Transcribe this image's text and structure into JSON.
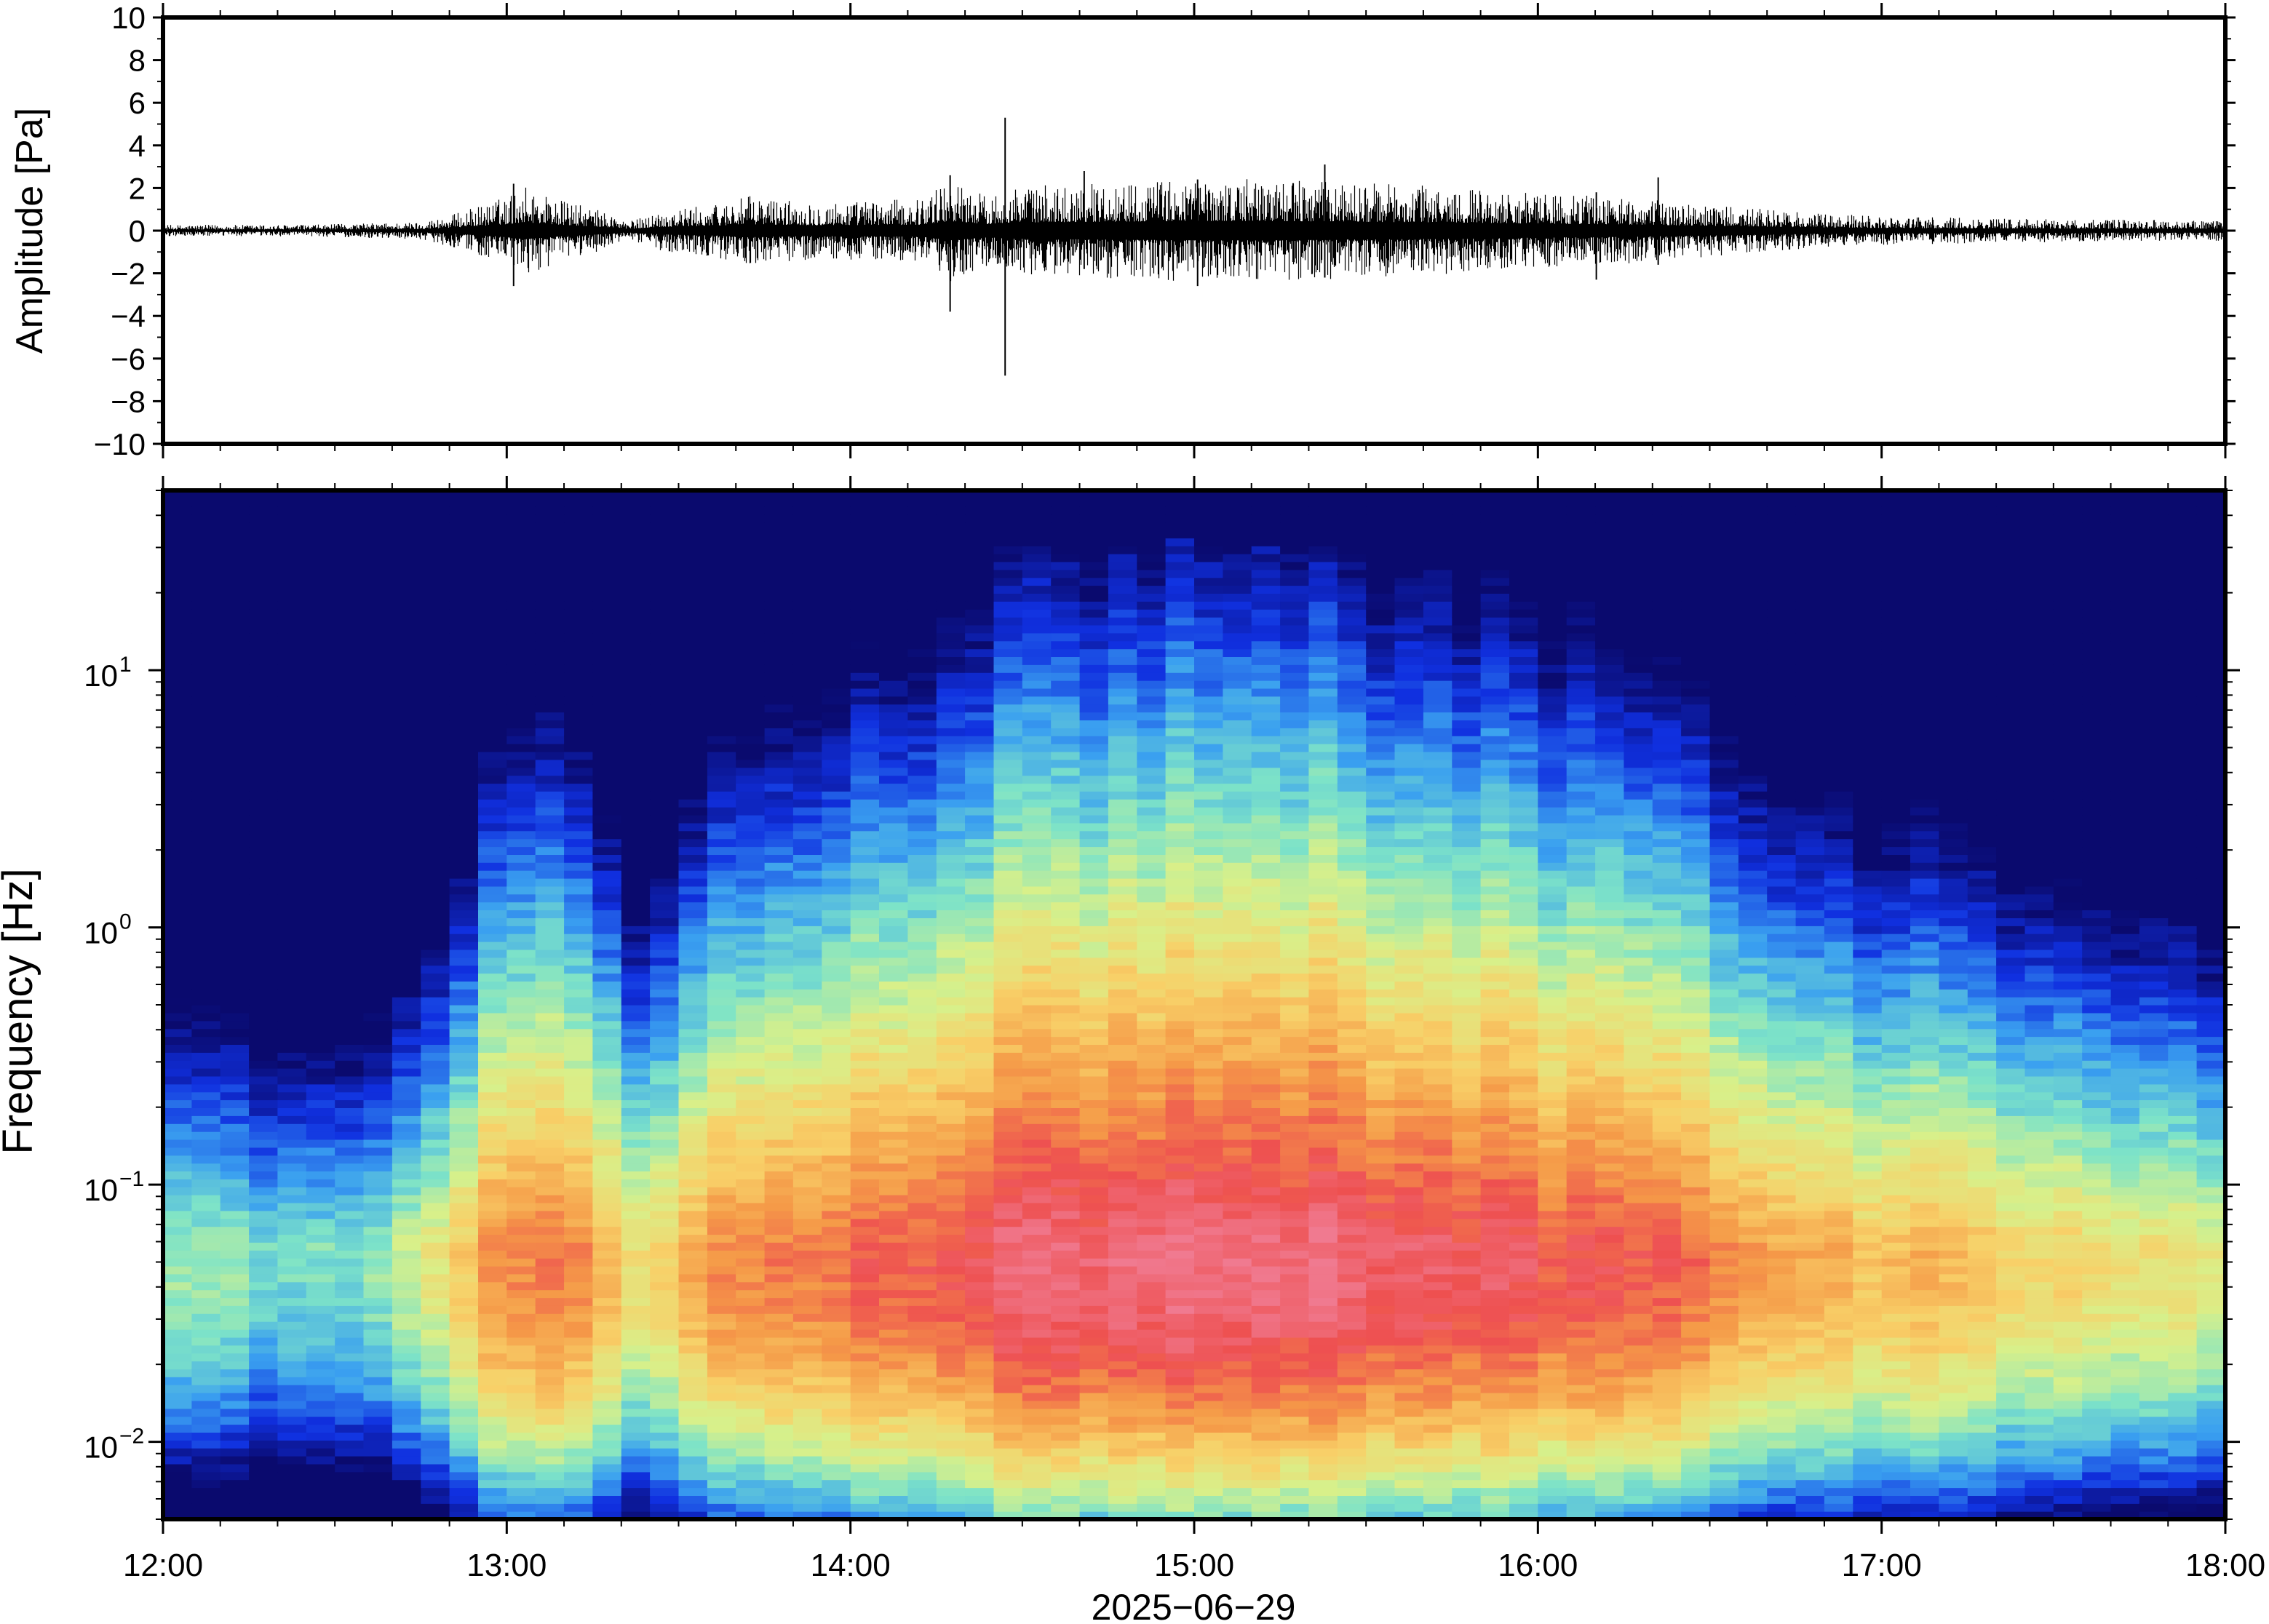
{
  "chart_data": [
    {
      "type": "line",
      "panel": "waveform",
      "ylabel": "Amplitude [Pa]",
      "ylim": [
        -10,
        10
      ],
      "yticks": [
        10,
        8,
        6,
        4,
        2,
        0,
        -2,
        -4,
        -6,
        -8,
        -10
      ],
      "ytick_labels": [
        "10",
        "8",
        "6",
        "4",
        "2",
        "0",
        "−2",
        "−4",
        "−6",
        "−8",
        "−10"
      ],
      "xlim": [
        "12:00",
        "18:00"
      ],
      "line_color": "#000000",
      "envelope": {
        "time_hours": [
          12.0,
          12.4,
          12.75,
          12.85,
          13.0,
          13.05,
          13.15,
          13.3,
          13.35,
          13.45,
          13.6,
          13.7,
          13.9,
          14.2,
          14.29,
          14.4,
          14.45,
          14.6,
          14.8,
          15.0,
          15.2,
          15.4,
          15.6,
          15.8,
          16.0,
          16.2,
          16.4,
          16.6,
          16.8,
          17.0,
          17.2,
          17.5,
          18.0
        ],
        "amplitude_pa": [
          0.2,
          0.2,
          0.3,
          0.6,
          1.2,
          1.6,
          1.1,
          0.6,
          0.3,
          0.7,
          0.9,
          1.2,
          1.0,
          1.1,
          1.8,
          1.2,
          1.5,
          1.6,
          1.7,
          1.8,
          1.8,
          1.7,
          1.6,
          1.5,
          1.3,
          1.2,
          1.0,
          0.8,
          0.6,
          0.5,
          0.45,
          0.4,
          0.35
        ]
      },
      "spikes": [
        {
          "time_hours": 13.02,
          "max": 2.2,
          "min": -2.6
        },
        {
          "time_hours": 14.29,
          "max": 2.6,
          "min": -3.8
        },
        {
          "time_hours": 14.45,
          "max": 5.3,
          "min": -6.8
        },
        {
          "time_hours": 14.68,
          "max": 2.8,
          "min": -1.8
        },
        {
          "time_hours": 15.01,
          "max": 2.4,
          "min": -2.6
        },
        {
          "time_hours": 15.38,
          "max": 3.1,
          "min": -2.2
        },
        {
          "time_hours": 16.17,
          "max": 1.8,
          "min": -2.3
        },
        {
          "time_hours": 16.35,
          "max": 2.5,
          "min": -1.6
        }
      ]
    },
    {
      "type": "heatmap",
      "panel": "spectrogram",
      "ylabel": "Frequency [Hz]",
      "yscale": "log",
      "ylim": [
        0.005,
        50
      ],
      "yticks": [
        0.01,
        0.1,
        1,
        10
      ],
      "ytick_labels": [
        "10",
        "10",
        "10",
        "10"
      ],
      "ytick_exponents": [
        "−2",
        "−1",
        "0",
        "1"
      ],
      "xlim": [
        "12:00",
        "18:00"
      ],
      "xticks": [
        "12:00",
        "13:00",
        "14:00",
        "15:00",
        "16:00",
        "17:00",
        "18:00"
      ],
      "xlabel": "2025−06−29",
      "colormap": "rainbow (navy low → blue → cyan → green → yellow → orange → red → pink high)",
      "colormap_colors": [
        "#0a0a6e",
        "#1030e0",
        "#3aa0f0",
        "#7de3c8",
        "#d8f08a",
        "#f8d068",
        "#f59a48",
        "#ee5050",
        "#f07a90"
      ],
      "time_columns_hours": [
        12.0,
        12.17,
        12.33,
        12.5,
        12.67,
        12.83,
        13.0,
        13.1,
        13.2,
        13.33,
        13.42,
        13.5,
        13.67,
        13.83,
        14.0,
        14.17,
        14.33,
        14.5,
        14.67,
        14.83,
        15.0,
        15.17,
        15.33,
        15.5,
        15.67,
        15.83,
        16.0,
        16.17,
        16.33,
        16.5,
        16.67,
        16.83,
        17.0,
        17.17,
        17.33,
        17.5,
        17.67,
        17.83,
        18.0
      ],
      "column_energy_level": [
        0.25,
        0.2,
        0.12,
        0.12,
        0.22,
        0.45,
        0.72,
        0.75,
        0.7,
        0.55,
        0.3,
        0.6,
        0.7,
        0.75,
        0.78,
        0.8,
        0.82,
        0.95,
        0.92,
        0.95,
        0.97,
        0.98,
        0.96,
        0.93,
        0.9,
        0.88,
        0.85,
        0.82,
        0.8,
        0.72,
        0.62,
        0.58,
        0.55,
        0.55,
        0.5,
        0.45,
        0.42,
        0.4,
        0.35
      ],
      "grid": false
    }
  ]
}
